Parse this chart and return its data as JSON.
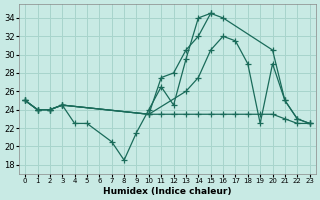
{
  "xlabel": "Humidex (Indice chaleur)",
  "xlim": [
    -0.5,
    23.5
  ],
  "ylim": [
    17,
    35.5
  ],
  "yticks": [
    18,
    20,
    22,
    24,
    26,
    28,
    30,
    32,
    34
  ],
  "xticks": [
    0,
    1,
    2,
    3,
    4,
    5,
    6,
    7,
    8,
    9,
    10,
    11,
    12,
    13,
    14,
    15,
    16,
    17,
    18,
    19,
    20,
    21,
    22,
    23
  ],
  "background_color": "#c8eae4",
  "grid_color": "#a8d4cc",
  "line_color": "#1a6b5a",
  "series": [
    {
      "x": [
        0,
        1,
        2,
        3,
        4,
        5,
        7,
        8,
        9,
        10,
        11,
        12,
        13,
        14,
        15
      ],
      "y": [
        25,
        24,
        24,
        24.5,
        22.5,
        22.5,
        20.5,
        18.5,
        21.5,
        24,
        26.5,
        24.5,
        29.5,
        34,
        34.5
      ]
    },
    {
      "x": [
        0,
        1,
        2,
        3,
        10,
        11,
        12,
        13,
        14,
        15,
        16,
        20,
        21,
        22,
        23
      ],
      "y": [
        25,
        24,
        24,
        24.5,
        23.5,
        27.5,
        28,
        30.5,
        32,
        34.5,
        34,
        30.5,
        25,
        23,
        22.5
      ]
    },
    {
      "x": [
        0,
        1,
        2,
        3,
        10,
        13,
        14,
        15,
        16,
        17,
        18,
        19,
        20,
        21,
        22,
        23
      ],
      "y": [
        25,
        24,
        24,
        24.5,
        23.5,
        26,
        27.5,
        30.5,
        32,
        31.5,
        29,
        22.5,
        29,
        25,
        23,
        22.5
      ]
    },
    {
      "x": [
        0,
        1,
        2,
        3,
        10,
        11,
        12,
        13,
        14,
        15,
        16,
        17,
        18,
        19,
        20,
        21,
        22,
        23
      ],
      "y": [
        25,
        24,
        24,
        24.5,
        23.5,
        23.5,
        23.5,
        23.5,
        23.5,
        23.5,
        23.5,
        23.5,
        23.5,
        23.5,
        23.5,
        23,
        22.5,
        22.5
      ]
    }
  ]
}
